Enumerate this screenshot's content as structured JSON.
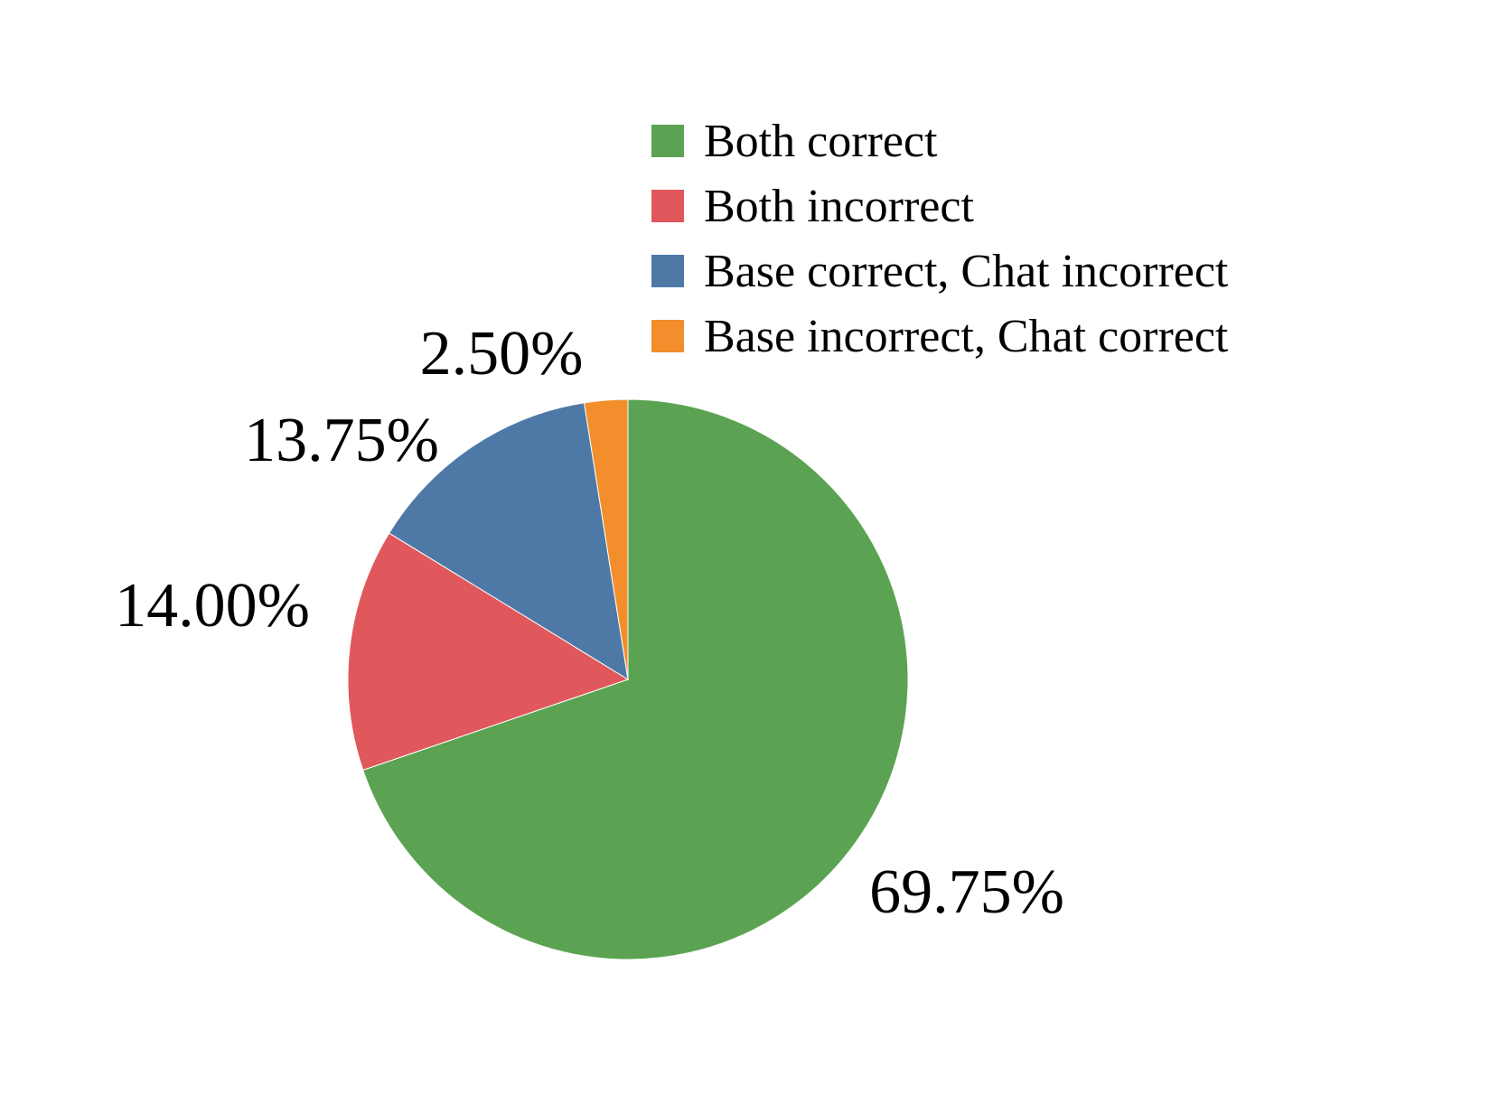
{
  "chart_data": {
    "type": "pie",
    "title": "",
    "legend_position": "top-right",
    "slices": [
      {
        "label": "Both correct",
        "value": 69.75,
        "value_label": "69.75%",
        "color": "#5ba352"
      },
      {
        "label": "Both incorrect",
        "value": 14.0,
        "value_label": "14.00%",
        "color": "#e0585b"
      },
      {
        "label": "Base correct, Chat incorrect",
        "value": 13.75,
        "value_label": "13.75%",
        "color": "#4e79a7"
      },
      {
        "label": "Base incorrect, Chat correct",
        "value": 2.5,
        "value_label": "2.50%",
        "color": "#f28e2c"
      }
    ]
  }
}
